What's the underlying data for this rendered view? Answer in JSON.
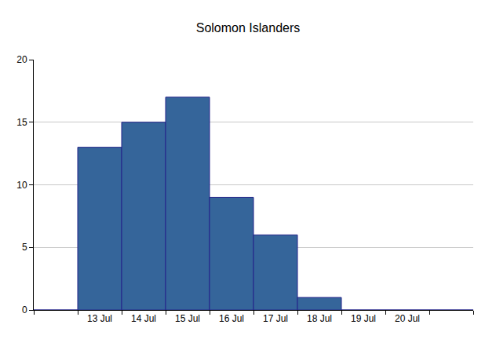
{
  "chart_data": {
    "type": "bar",
    "title": "Solomon Islanders",
    "categories": [
      null,
      "13 Jul",
      "14 Jul",
      "15 Jul",
      "16 Jul",
      "17 Jul",
      "18 Jul",
      "19 Jul",
      "20 Jul",
      null
    ],
    "values": [
      0,
      13,
      15,
      17,
      9,
      6,
      1,
      0,
      0,
      0
    ],
    "color": "#35659a",
    "ylim": [
      0,
      20
    ],
    "yticks": [
      0,
      5,
      10,
      15,
      20
    ],
    "grid": true
  }
}
